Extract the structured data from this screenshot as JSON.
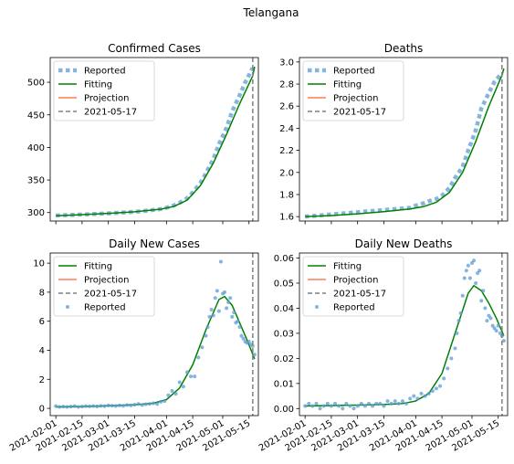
{
  "figure": {
    "suptitle": "Telangana"
  },
  "legend_labels": {
    "reported": "Reported",
    "fitting": "Fitting",
    "projection": "Projection",
    "vline": "2021-05-17"
  },
  "colors": {
    "reported": "#5b9bd5",
    "fitting": "#008000",
    "projection": "#ff7f50",
    "vline": "#808080"
  },
  "x_ticks": [
    "2021-02-01",
    "2021-02-15",
    "2021-03-01",
    "2021-03-15",
    "2021-04-01",
    "2021-04-15",
    "2021-05-01",
    "2021-05-15"
  ],
  "vline_date": "2021-05-17",
  "chart_data": [
    {
      "id": "confirmed",
      "type": "line",
      "title": "Confirmed Cases",
      "x_range": [
        "2021-01-29",
        "2021-05-20"
      ],
      "ylim": [
        287,
        538
      ],
      "yticks": [
        "300",
        "350",
        "400",
        "450",
        "500"
      ],
      "ytick_values": [
        300,
        350,
        400,
        450,
        500
      ],
      "legend": "top-left",
      "series": [
        {
          "name": "Reported",
          "style": "dotted-squares",
          "x": [
            "2021-02-01",
            "2021-02-08",
            "2021-02-15",
            "2021-02-22",
            "2021-03-01",
            "2021-03-08",
            "2021-03-15",
            "2021-03-22",
            "2021-03-29",
            "2021-04-01",
            "2021-04-05",
            "2021-04-08",
            "2021-04-12",
            "2021-04-15",
            "2021-04-19",
            "2021-04-22",
            "2021-04-26",
            "2021-04-29",
            "2021-05-03",
            "2021-05-06",
            "2021-05-10",
            "2021-05-13",
            "2021-05-17"
          ],
          "y": [
            295.5,
            296.2,
            297,
            297.8,
            298.8,
            300,
            301.2,
            303,
            305.5,
            307.5,
            311,
            315,
            322,
            331,
            345,
            360,
            382,
            405,
            430,
            455,
            480,
            500,
            522
          ]
        },
        {
          "name": "Fitting",
          "style": "solid",
          "x": [
            "2021-02-01",
            "2021-02-15",
            "2021-03-01",
            "2021-03-15",
            "2021-03-29",
            "2021-04-05",
            "2021-04-12",
            "2021-04-19",
            "2021-04-26",
            "2021-05-03",
            "2021-05-10",
            "2021-05-17",
            "2021-05-18"
          ],
          "y": [
            295,
            296.8,
            298.7,
            301.2,
            305.2,
            309.5,
            319,
            341,
            376,
            420,
            467,
            510,
            524
          ]
        }
      ]
    },
    {
      "id": "deaths",
      "type": "line",
      "title": "Deaths",
      "x_range": [
        "2021-01-29",
        "2021-05-20"
      ],
      "ylim": [
        1.56,
        3.04
      ],
      "yticks": [
        "1.6",
        "1.8",
        "2.0",
        "2.2",
        "2.4",
        "2.6",
        "2.8",
        "3.0"
      ],
      "ytick_values": [
        1.6,
        1.8,
        2.0,
        2.2,
        2.4,
        2.6,
        2.8,
        3.0
      ],
      "legend": "top-left",
      "series": [
        {
          "name": "Reported",
          "style": "dotted-squares",
          "x": [
            "2021-02-01",
            "2021-02-08",
            "2021-02-15",
            "2021-02-22",
            "2021-03-01",
            "2021-03-08",
            "2021-03-15",
            "2021-03-22",
            "2021-03-29",
            "2021-04-01",
            "2021-04-05",
            "2021-04-08",
            "2021-04-12",
            "2021-04-15",
            "2021-04-19",
            "2021-04-22",
            "2021-04-26",
            "2021-04-29",
            "2021-05-03",
            "2021-05-06",
            "2021-05-10",
            "2021-05-13",
            "2021-05-17"
          ],
          "y": [
            1.6,
            1.61,
            1.62,
            1.63,
            1.64,
            1.65,
            1.66,
            1.67,
            1.68,
            1.7,
            1.72,
            1.74,
            1.76,
            1.79,
            1.86,
            1.95,
            2.05,
            2.2,
            2.38,
            2.58,
            2.72,
            2.82,
            2.9
          ]
        },
        {
          "name": "Fitting",
          "style": "solid",
          "x": [
            "2021-02-01",
            "2021-02-15",
            "2021-03-01",
            "2021-03-15",
            "2021-03-29",
            "2021-04-05",
            "2021-04-12",
            "2021-04-19",
            "2021-04-26",
            "2021-05-03",
            "2021-05-10",
            "2021-05-17",
            "2021-05-18"
          ],
          "y": [
            1.6,
            1.61,
            1.625,
            1.645,
            1.67,
            1.69,
            1.73,
            1.82,
            2.0,
            2.28,
            2.6,
            2.88,
            2.94
          ]
        }
      ]
    },
    {
      "id": "daily_cases",
      "type": "scatter",
      "title": "Daily New Cases",
      "x_range": [
        "2021-01-29",
        "2021-05-20"
      ],
      "ylim": [
        -0.5,
        10.7
      ],
      "yticks": [
        "0",
        "2",
        "4",
        "6",
        "8",
        "10"
      ],
      "ytick_values": [
        0,
        2,
        4,
        6,
        8,
        10
      ],
      "legend": "top-left",
      "series": [
        {
          "name": "Fitting",
          "style": "solid",
          "x": [
            "2021-02-01",
            "2021-02-15",
            "2021-03-01",
            "2021-03-15",
            "2021-03-25",
            "2021-04-01",
            "2021-04-08",
            "2021-04-15",
            "2021-04-22",
            "2021-04-29",
            "2021-05-02",
            "2021-05-06",
            "2021-05-10",
            "2021-05-14",
            "2021-05-18"
          ],
          "y": [
            0.1,
            0.12,
            0.18,
            0.25,
            0.35,
            0.6,
            1.4,
            3.0,
            5.4,
            7.5,
            7.7,
            7.1,
            5.9,
            4.7,
            3.4
          ]
        },
        {
          "name": "Reported",
          "style": "scatter",
          "x": [
            "2021-02-01",
            "2021-02-03",
            "2021-02-05",
            "2021-02-07",
            "2021-02-09",
            "2021-02-11",
            "2021-02-13",
            "2021-02-15",
            "2021-02-17",
            "2021-02-19",
            "2021-02-21",
            "2021-02-23",
            "2021-02-25",
            "2021-02-27",
            "2021-03-01",
            "2021-03-03",
            "2021-03-05",
            "2021-03-07",
            "2021-03-09",
            "2021-03-11",
            "2021-03-13",
            "2021-03-15",
            "2021-03-17",
            "2021-03-19",
            "2021-03-21",
            "2021-03-23",
            "2021-03-25",
            "2021-03-27",
            "2021-03-29",
            "2021-03-31",
            "2021-04-02",
            "2021-04-04",
            "2021-04-06",
            "2021-04-08",
            "2021-04-10",
            "2021-04-12",
            "2021-04-14",
            "2021-04-16",
            "2021-04-18",
            "2021-04-20",
            "2021-04-22",
            "2021-04-23",
            "2021-04-24",
            "2021-04-25",
            "2021-04-26",
            "2021-04-27",
            "2021-04-28",
            "2021-04-29",
            "2021-04-30",
            "2021-05-01",
            "2021-05-02",
            "2021-05-03",
            "2021-05-04",
            "2021-05-05",
            "2021-05-06",
            "2021-05-07",
            "2021-05-08",
            "2021-05-09",
            "2021-05-10",
            "2021-05-11",
            "2021-05-12",
            "2021-05-13",
            "2021-05-14",
            "2021-05-15",
            "2021-05-16",
            "2021-05-17",
            "2021-05-18"
          ],
          "y": [
            0.15,
            0.1,
            0.12,
            0.1,
            0.12,
            0.15,
            0.1,
            0.12,
            0.15,
            0.14,
            0.16,
            0.13,
            0.17,
            0.15,
            0.2,
            0.18,
            0.16,
            0.2,
            0.17,
            0.22,
            0.2,
            0.25,
            0.3,
            0.22,
            0.28,
            0.3,
            0.35,
            0.3,
            0.45,
            0.5,
            0.9,
            1.2,
            1.0,
            1.8,
            1.5,
            2.5,
            2.2,
            2.2,
            3.5,
            4.2,
            5.0,
            5.6,
            6.3,
            6.8,
            6.4,
            7.6,
            8.1,
            6.7,
            10.1,
            7.9,
            8.0,
            6.9,
            7.3,
            7.6,
            6.3,
            6.6,
            5.9,
            6.0,
            5.6,
            5.0,
            4.8,
            4.6,
            4.5,
            4.6,
            4.4,
            4.3,
            3.7
          ]
        }
      ]
    },
    {
      "id": "daily_deaths",
      "type": "scatter",
      "title": "Daily New Deaths",
      "x_range": [
        "2021-01-29",
        "2021-05-20"
      ],
      "ylim": [
        -0.0028,
        0.062
      ],
      "yticks": [
        "0.00",
        "0.01",
        "0.02",
        "0.03",
        "0.04",
        "0.05",
        "0.06"
      ],
      "ytick_values": [
        0,
        0.01,
        0.02,
        0.03,
        0.04,
        0.05,
        0.06
      ],
      "legend": "top-left",
      "series": [
        {
          "name": "Fitting",
          "style": "solid",
          "x": [
            "2021-02-01",
            "2021-02-15",
            "2021-03-01",
            "2021-03-15",
            "2021-03-25",
            "2021-04-01",
            "2021-04-08",
            "2021-04-15",
            "2021-04-22",
            "2021-04-29",
            "2021-05-02",
            "2021-05-06",
            "2021-05-10",
            "2021-05-14",
            "2021-05-18"
          ],
          "y": [
            0.001,
            0.0012,
            0.0014,
            0.0016,
            0.002,
            0.003,
            0.006,
            0.014,
            0.03,
            0.046,
            0.049,
            0.047,
            0.042,
            0.036,
            0.029
          ]
        },
        {
          "name": "Reported",
          "style": "scatter",
          "x": [
            "2021-02-01",
            "2021-02-03",
            "2021-02-05",
            "2021-02-07",
            "2021-02-09",
            "2021-02-11",
            "2021-02-13",
            "2021-02-15",
            "2021-02-17",
            "2021-02-19",
            "2021-02-21",
            "2021-02-23",
            "2021-02-25",
            "2021-02-27",
            "2021-03-01",
            "2021-03-03",
            "2021-03-05",
            "2021-03-07",
            "2021-03-09",
            "2021-03-11",
            "2021-03-13",
            "2021-03-15",
            "2021-03-17",
            "2021-03-19",
            "2021-03-21",
            "2021-03-23",
            "2021-03-25",
            "2021-03-27",
            "2021-03-29",
            "2021-03-31",
            "2021-04-02",
            "2021-04-04",
            "2021-04-06",
            "2021-04-08",
            "2021-04-10",
            "2021-04-12",
            "2021-04-14",
            "2021-04-16",
            "2021-04-18",
            "2021-04-20",
            "2021-04-22",
            "2021-04-23",
            "2021-04-24",
            "2021-04-25",
            "2021-04-26",
            "2021-04-27",
            "2021-04-28",
            "2021-04-29",
            "2021-04-30",
            "2021-05-01",
            "2021-05-02",
            "2021-05-03",
            "2021-05-04",
            "2021-05-05",
            "2021-05-06",
            "2021-05-07",
            "2021-05-08",
            "2021-05-09",
            "2021-05-10",
            "2021-05-11",
            "2021-05-12",
            "2021-05-13",
            "2021-05-14",
            "2021-05-15",
            "2021-05-16",
            "2021-05-17",
            "2021-05-18"
          ],
          "y": [
            0.001,
            0.002,
            0.001,
            0.002,
            0.0,
            0.001,
            0.002,
            0.001,
            0.002,
            0.001,
            0.0,
            0.002,
            0.001,
            0.0,
            0.001,
            0.002,
            0.001,
            0.002,
            0.001,
            0.002,
            0.002,
            0.001,
            0.003,
            0.002,
            0.003,
            0.002,
            0.003,
            0.002,
            0.004,
            0.005,
            0.004,
            0.006,
            0.005,
            0.006,
            0.007,
            0.008,
            0.009,
            0.012,
            0.016,
            0.02,
            0.024,
            0.03,
            0.035,
            0.038,
            0.045,
            0.052,
            0.055,
            0.057,
            0.052,
            0.058,
            0.059,
            0.05,
            0.054,
            0.055,
            0.043,
            0.047,
            0.04,
            0.035,
            0.037,
            0.036,
            0.033,
            0.032,
            0.031,
            0.033,
            0.03,
            0.029,
            0.027
          ]
        }
      ]
    }
  ]
}
